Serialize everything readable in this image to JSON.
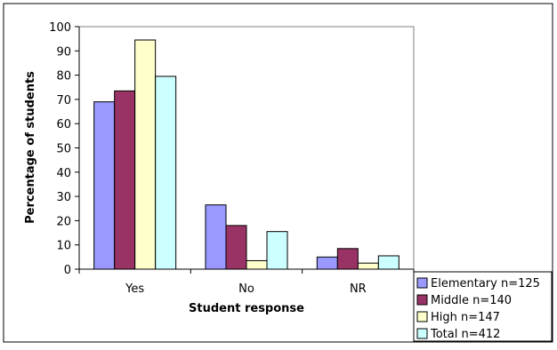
{
  "chart_data": {
    "type": "bar",
    "title": "",
    "xlabel": "Student response",
    "ylabel": "Percentage of students",
    "categories": [
      "Yes",
      "No",
      "NR"
    ],
    "ylim": [
      0,
      100
    ],
    "yticks": [
      "0",
      "10",
      "20",
      "30",
      "40",
      "50",
      "60",
      "70",
      "80",
      "90",
      "100"
    ],
    "grid": false,
    "legend_position": "bottom-right",
    "series": [
      {
        "name": "Elementary n=125",
        "color": "#9999ff",
        "values": [
          69,
          26.5,
          5
        ]
      },
      {
        "name": "Middle n=140",
        "color": "#993366",
        "values": [
          73.5,
          18,
          8.5
        ]
      },
      {
        "name": "High n=147",
        "color": "#ffffcc",
        "values": [
          94.5,
          3.5,
          2.5
        ]
      },
      {
        "name": "Total n=412",
        "color": "#ccffff",
        "values": [
          79.5,
          15.5,
          5.5
        ]
      }
    ]
  }
}
